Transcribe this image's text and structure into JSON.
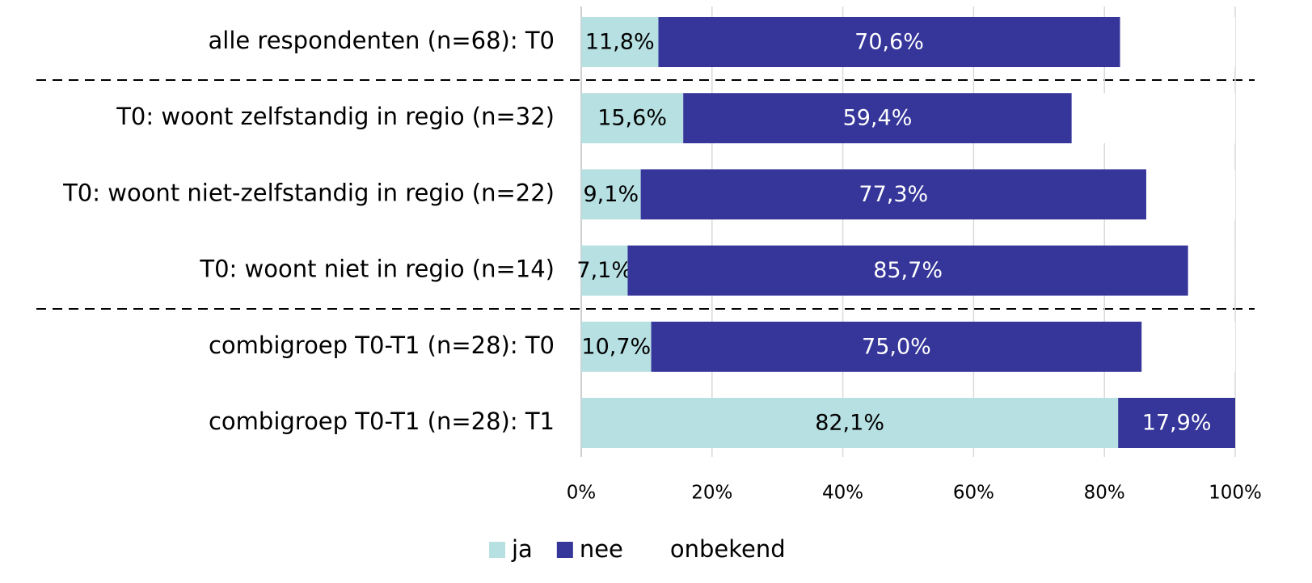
{
  "chart_data": {
    "type": "stacked_barh",
    "categories": [
      "alle respondenten (n=68): T0",
      "T0: woont zelfstandig in regio (n=32)",
      "T0: woont niet-zelfstandig in regio (n=22)",
      "T0: woont niet in regio (n=14)",
      "combigroep T0-T1 (n=28): T0",
      "combigroep T0-T1 (n=28): T1"
    ],
    "series": [
      {
        "name": "ja",
        "color": "#b7e0e3",
        "label_color": "#000000",
        "values": [
          11.8,
          15.6,
          9.1,
          7.1,
          10.7,
          82.1
        ],
        "value_labels": [
          "11,8%",
          "15,6%",
          "9,1%",
          "7,1%",
          "10,7%",
          "82,1%"
        ]
      },
      {
        "name": "nee",
        "color": "#35359a",
        "label_color": "#ffffff",
        "values": [
          70.6,
          59.4,
          77.3,
          85.7,
          75.0,
          17.9
        ],
        "value_labels": [
          "70,6%",
          "59,4%",
          "77,3%",
          "85,7%",
          "75,0%",
          "17,9%"
        ]
      },
      {
        "name": "onbekend",
        "color": "#ffffff",
        "values": [
          17.6,
          25.0,
          13.6,
          7.1,
          14.3,
          0
        ]
      }
    ],
    "xlim": [
      0,
      100
    ],
    "xticks": [
      {
        "value": 0,
        "label": "0%"
      },
      {
        "value": 20,
        "label": "20%"
      },
      {
        "value": 40,
        "label": "40%"
      },
      {
        "value": 60,
        "label": "60%"
      },
      {
        "value": 80,
        "label": "80%"
      },
      {
        "value": 100,
        "label": "100%"
      }
    ],
    "grid": true,
    "legend": "bottom"
  }
}
